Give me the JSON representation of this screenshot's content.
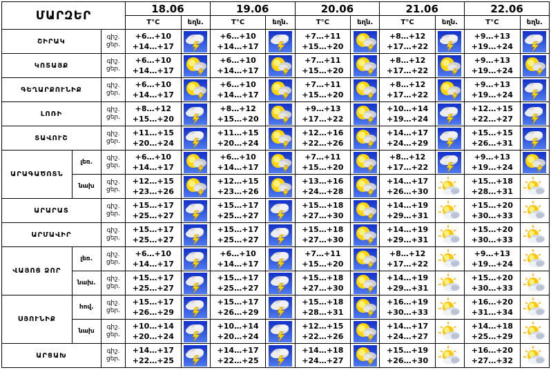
{
  "title": "ՄԱՐԶԵՐ",
  "dates": [
    "18.06",
    "19.06",
    "20.06",
    "21.06",
    "22.06"
  ],
  "temp_header": "T°C",
  "icon_header": "եղն.",
  "rows": [
    {
      "region": "ՇԻՐԱԿ",
      "sub": "",
      "tod": [
        "գիշ.",
        "ցեր."
      ],
      "days": [
        {
          "night": "+6…+10",
          "day": "+14…+17",
          "icon": "thunderstorm-icon"
        },
        {
          "night": "+6…+10",
          "day": "+14…+17",
          "icon": "thunderstorm-icon"
        },
        {
          "night": "+7…+11",
          "day": "+15…+20",
          "icon": "sun-cloud-lightning-icon"
        },
        {
          "night": "+8…+12",
          "day": "+17…+22",
          "icon": "thunderstorm-icon"
        },
        {
          "night": "+9…+13",
          "day": "+19…+24",
          "icon": "thunderstorm-icon"
        }
      ]
    },
    {
      "region": "ԿՈՏԱՅՔ",
      "sub": "",
      "tod": [
        "գիշ.",
        "ցեր."
      ],
      "days": [
        {
          "night": "+6…+10",
          "day": "+14…+17",
          "icon": "sun-cloud-lightning-icon"
        },
        {
          "night": "+6…+10",
          "day": "+14…+17",
          "icon": "sun-cloud-lightning-icon"
        },
        {
          "night": "+7…+11",
          "day": "+15…+20",
          "icon": "sun-cloud-lightning-icon"
        },
        {
          "night": "+8…+12",
          "day": "+17…+22",
          "icon": "sun-cloud-lightning-icon"
        },
        {
          "night": "+9…+13",
          "day": "+19…+24",
          "icon": "sun-cloud-lightning-icon"
        }
      ]
    },
    {
      "region": "ԳԵՂԱՐՔՈՒՆԻՔ",
      "sub": "",
      "tod": [
        "գիշ.",
        "ցեր."
      ],
      "days": [
        {
          "night": "+6…+10",
          "day": "+14…+17",
          "icon": "sun-cloud-lightning-icon"
        },
        {
          "night": "+6…+10",
          "day": "+14…+17",
          "icon": "sun-cloud-lightning-icon"
        },
        {
          "night": "+7…+11",
          "day": "+15…+20",
          "icon": "sun-cloud-lightning-icon"
        },
        {
          "night": "+8…+12",
          "day": "+17…+22",
          "icon": "sun-cloud-lightning-icon"
        },
        {
          "night": "+9…+13",
          "day": "+19…+24",
          "icon": "thunderstorm-icon"
        }
      ]
    },
    {
      "region": "ԼՈՌԻ",
      "sub": "",
      "tod": [
        "գիշ.",
        "ցեր."
      ],
      "days": [
        {
          "night": "+8…+12",
          "day": "+15…+20",
          "icon": "thunderstorm-icon"
        },
        {
          "night": "+8…+12",
          "day": "+15…+20",
          "icon": "sun-cloud-lightning-icon"
        },
        {
          "night": "+9…+13",
          "day": "+17…+22",
          "icon": "sun-cloud-lightning-icon"
        },
        {
          "night": "+10…+14",
          "day": "+19…+24",
          "icon": "thunderstorm-icon"
        },
        {
          "night": "+12…+15",
          "day": "+22…+27",
          "icon": "thunderstorm-icon"
        }
      ]
    },
    {
      "region": "ՏԱՎՈՒՇ",
      "sub": "",
      "tod": [
        "գիշ.",
        "ցեր."
      ],
      "days": [
        {
          "night": "+11…+15",
          "day": "+20…+24",
          "icon": "thunderstorm-icon"
        },
        {
          "night": "+11…+15",
          "day": "+20…+24",
          "icon": "sun-cloud-lightning-icon"
        },
        {
          "night": "+12…+16",
          "day": "+22…+26",
          "icon": "sun-cloud-lightning-icon"
        },
        {
          "night": "+14…+17",
          "day": "+24…+29",
          "icon": "thunderstorm-icon"
        },
        {
          "night": "+15…+15",
          "day": "+26…+31",
          "icon": "thunderstorm-icon"
        }
      ]
    },
    {
      "region": "ԱՐԱԳԱԾՈՏՆ",
      "sub": "լեռ.",
      "tod": [
        "գիշ.",
        "ցեր."
      ],
      "days": [
        {
          "night": "+6…+10",
          "day": "+14…+17",
          "icon": "sun-cloud-lightning-icon"
        },
        {
          "night": "+6…+10",
          "day": "+14…+17",
          "icon": "sun-cloud-lightning-icon"
        },
        {
          "night": "+7…+11",
          "day": "+15…+20",
          "icon": "sun-cloud-lightning-icon"
        },
        {
          "night": "+8…+12",
          "day": "+17…+22",
          "icon": "thunderstorm-icon"
        },
        {
          "night": "+9…+13",
          "day": "+19…+24",
          "icon": "sun-cloud-lightning-icon"
        }
      ]
    },
    {
      "region": "",
      "sub": "նախ",
      "tod": [
        "գիշ.",
        "ցեր."
      ],
      "days": [
        {
          "night": "+12…+15",
          "day": "+23…+26",
          "icon": "sun-cloud-lightning-icon"
        },
        {
          "night": "+12…+15",
          "day": "+23…+26",
          "icon": "sun-cloud-lightning-icon"
        },
        {
          "night": "+13…+16",
          "day": "+24…+28",
          "icon": "sun-cloud-lightning-icon"
        },
        {
          "night": "+14…+17",
          "day": "+26…+30",
          "icon": "partly-cloudy-icon"
        },
        {
          "night": "+15…+18",
          "day": "+28…+31",
          "icon": "partly-cloudy-icon"
        }
      ]
    },
    {
      "region": "ԱՐԱՐԱՏ",
      "sub": "",
      "tod": [
        "գիշ.",
        "ցեր."
      ],
      "days": [
        {
          "night": "+15…+17",
          "day": "+25…+27",
          "icon": "thunderstorm-icon"
        },
        {
          "night": "+15…+17",
          "day": "+25…+27",
          "icon": "thunderstorm-icon"
        },
        {
          "night": "+15…+18",
          "day": "+27…+30",
          "icon": "sun-cloud-lightning-icon"
        },
        {
          "night": "+14…+19",
          "day": "+29…+31",
          "icon": "partly-cloudy-icon"
        },
        {
          "night": "+15…+20",
          "day": "+30…+33",
          "icon": "partly-cloudy-icon"
        }
      ]
    },
    {
      "region": "ԱՐՄԱՎԻՐ",
      "sub": "",
      "tod": [
        "գիշ.",
        "ցեր."
      ],
      "days": [
        {
          "night": "+15…+17",
          "day": "+25…+27",
          "icon": "thunderstorm-icon"
        },
        {
          "night": "+15…+17",
          "day": "+25…+27",
          "icon": "thunderstorm-icon"
        },
        {
          "night": "+15…+18",
          "day": "+27…+30",
          "icon": "sun-cloud-lightning-icon"
        },
        {
          "night": "+14…+19",
          "day": "+29…+31",
          "icon": "partly-cloudy-icon"
        },
        {
          "night": "+15…+20",
          "day": "+30…+33",
          "icon": "partly-cloudy-icon"
        }
      ]
    },
    {
      "region": "ՎԱՅՈՑ ՁՈՐ",
      "sub": "լեռ.",
      "tod": [
        "գիշ.",
        "ցեր."
      ],
      "days": [
        {
          "night": "+6…+10",
          "day": "+14…+17",
          "icon": "thunderstorm-icon"
        },
        {
          "night": "+6…+10",
          "day": "+14…+17",
          "icon": "thunderstorm-icon"
        },
        {
          "night": "+7…+11",
          "day": "+15…+20",
          "icon": "sun-cloud-lightning-icon"
        },
        {
          "night": "+8…+12",
          "day": "+17…+22",
          "icon": "partly-cloudy-icon"
        },
        {
          "night": "+9…+13",
          "day": "+19…+24",
          "icon": "partly-cloudy-icon"
        }
      ]
    },
    {
      "region": "",
      "sub": "նախ.",
      "tod": [
        "գիշ.",
        "ցեր."
      ],
      "days": [
        {
          "night": "+15…+17",
          "day": "+25…+27",
          "icon": "thunderstorm-icon"
        },
        {
          "night": "+15…+17",
          "day": "+25…+27",
          "icon": "thunderstorm-icon"
        },
        {
          "night": "+15…+18",
          "day": "+27…+30",
          "icon": "sun-cloud-lightning-icon"
        },
        {
          "night": "+14…+19",
          "day": "+29…+31",
          "icon": "partly-cloudy-icon"
        },
        {
          "night": "+15…+20",
          "day": "+30…+33",
          "icon": "partly-cloudy-icon"
        }
      ]
    },
    {
      "region": "ՍՅՈՒՆԻՔ",
      "sub": "հով.",
      "tod": [
        "գիշ.",
        "ցեր."
      ],
      "days": [
        {
          "night": "+15…+17",
          "day": "+26…+29",
          "icon": "thunderstorm-icon"
        },
        {
          "night": "+15…+17",
          "day": "+26…+29",
          "icon": "thunderstorm-icon"
        },
        {
          "night": "+15…+18",
          "day": "+28…+31",
          "icon": "sun-cloud-lightning-icon"
        },
        {
          "night": "+16…+19",
          "day": "+30…+33",
          "icon": "partly-cloudy-icon"
        },
        {
          "night": "+16…+20",
          "day": "+31…+34",
          "icon": "partly-cloudy-icon"
        }
      ]
    },
    {
      "region": "",
      "sub": "նախ",
      "tod": [
        "գիշ.",
        "ցեր."
      ],
      "days": [
        {
          "night": "+10…+14",
          "day": "+20…+24",
          "icon": "thunderstorm-icon"
        },
        {
          "night": "+10…+14",
          "day": "+20…+24",
          "icon": "thunderstorm-icon"
        },
        {
          "night": "+12…+15",
          "day": "+22…+26",
          "icon": "sun-cloud-lightning-icon"
        },
        {
          "night": "+14…+17",
          "day": "+24…+27",
          "icon": "partly-cloudy-icon"
        },
        {
          "night": "+14…+18",
          "day": "+25…+29",
          "icon": "partly-cloudy-icon"
        }
      ]
    },
    {
      "region": "ԱՐՑԱԽ",
      "sub": "",
      "tod": [
        "գիշ.",
        "ցեր."
      ],
      "days": [
        {
          "night": "+14…+17",
          "day": "+22…+25",
          "icon": "thunderstorm-icon"
        },
        {
          "night": "+14…+17",
          "day": "+22…+25",
          "icon": "thunderstorm-icon"
        },
        {
          "night": "+14…+18",
          "day": "+24…+27",
          "icon": "sun-cloud-lightning-icon"
        },
        {
          "night": "+15…+19",
          "day": "+26…+30",
          "icon": "partly-cloudy-icon"
        },
        {
          "night": "+16…+20",
          "day": "+27…+32",
          "icon": "partly-cloudy-icon"
        }
      ]
    }
  ]
}
